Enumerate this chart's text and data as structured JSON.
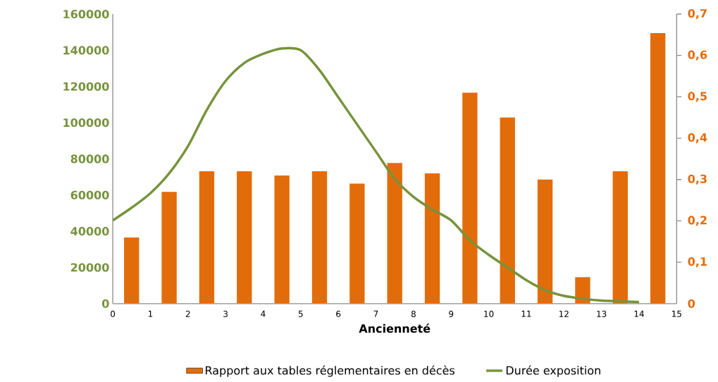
{
  "chart_data": {
    "type": "bar",
    "xlabel": "Ancienneté",
    "x": [
      0.5,
      1.5,
      2.5,
      3.5,
      4.5,
      5.5,
      6.5,
      7.5,
      8.5,
      9.5,
      10.5,
      11.5,
      12.5,
      13.5,
      14.5
    ],
    "xlim": [
      0,
      15
    ],
    "xticks": [
      0,
      1,
      2,
      3,
      4,
      5,
      6,
      7,
      8,
      9,
      10,
      11,
      12,
      13,
      14,
      15
    ],
    "ylim": [
      0,
      160000
    ],
    "yticks": [
      0,
      20000,
      40000,
      60000,
      80000,
      100000,
      120000,
      140000,
      160000
    ],
    "y2lim": [
      0,
      0.7
    ],
    "y2ticks": [
      {
        "value": 0,
        "label": "0"
      },
      {
        "value": 0.1,
        "label": "0,1"
      },
      {
        "value": 0.2,
        "label": "0,2"
      },
      {
        "value": 0.3,
        "label": "0,3"
      },
      {
        "value": 0.4,
        "label": "0,4"
      },
      {
        "value": 0.5,
        "label": "0,5"
      },
      {
        "value": 0.6,
        "label": "0,6"
      },
      {
        "value": 0.7,
        "label": "0,7"
      }
    ],
    "legend": "bottom",
    "series": [
      {
        "name": "Rapport aux tables réglementaires en décès",
        "axis": "y2",
        "color": "#e36c0a",
        "values": [
          0.16,
          0.27,
          0.32,
          0.32,
          0.31,
          0.32,
          0.29,
          0.34,
          0.315,
          0.51,
          0.45,
          0.3,
          0.064,
          0.32,
          0.654
        ]
      },
      {
        "name": "Durée exposition",
        "type": "line",
        "axis": "y",
        "color": "#77933c",
        "x": [
          0,
          0.5,
          1,
          1.5,
          2,
          2.5,
          3,
          3.5,
          4,
          4.5,
          5,
          5.5,
          6,
          6.5,
          7,
          7.5,
          8,
          8.5,
          9,
          9.5,
          10,
          10.5,
          11,
          11.5,
          12,
          12.5,
          13,
          13.5,
          14
        ],
        "values": [
          46000,
          53000,
          61000,
          72000,
          87000,
          107000,
          123000,
          133000,
          138000,
          141000,
          140000,
          129000,
          114000,
          99000,
          84000,
          69000,
          59000,
          52000,
          46000,
          35000,
          27000,
          20000,
          13000,
          7500,
          4300,
          2700,
          1700,
          1300,
          900
        ]
      }
    ]
  }
}
